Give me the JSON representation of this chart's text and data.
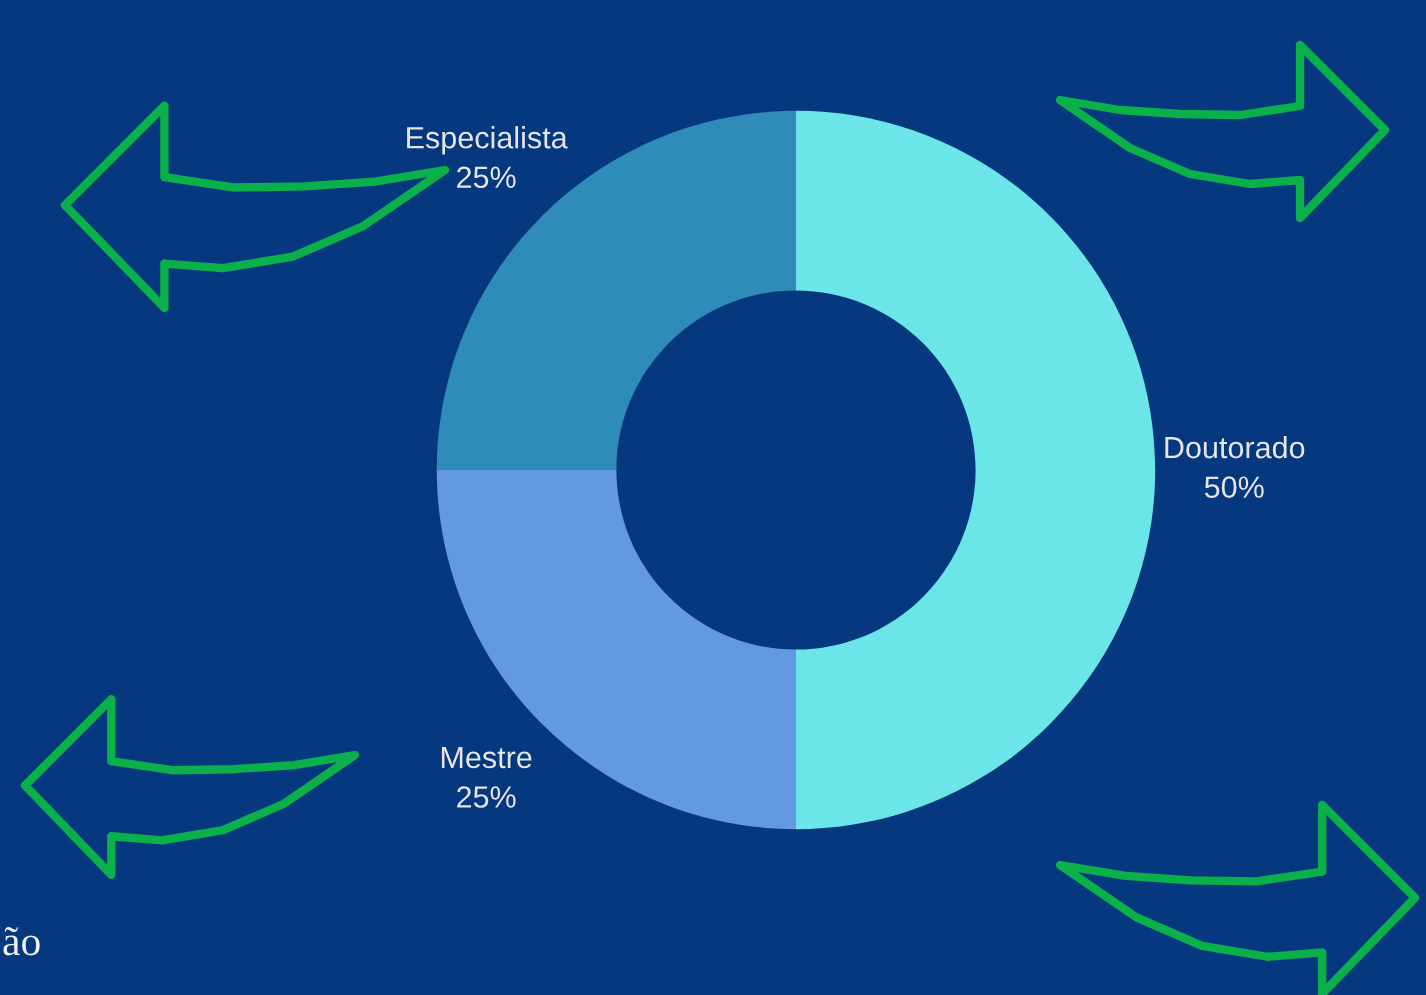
{
  "chart_data": {
    "type": "donut",
    "categories": [
      "Doutorado",
      "Mestre",
      "Especialista"
    ],
    "values": [
      50,
      25,
      25
    ],
    "value_labels": [
      "50%",
      "25%",
      "25%"
    ],
    "colors": [
      "#6ce5e8",
      "#6399e3",
      "#2e8bba"
    ],
    "annotations": [
      "ão"
    ]
  }
}
